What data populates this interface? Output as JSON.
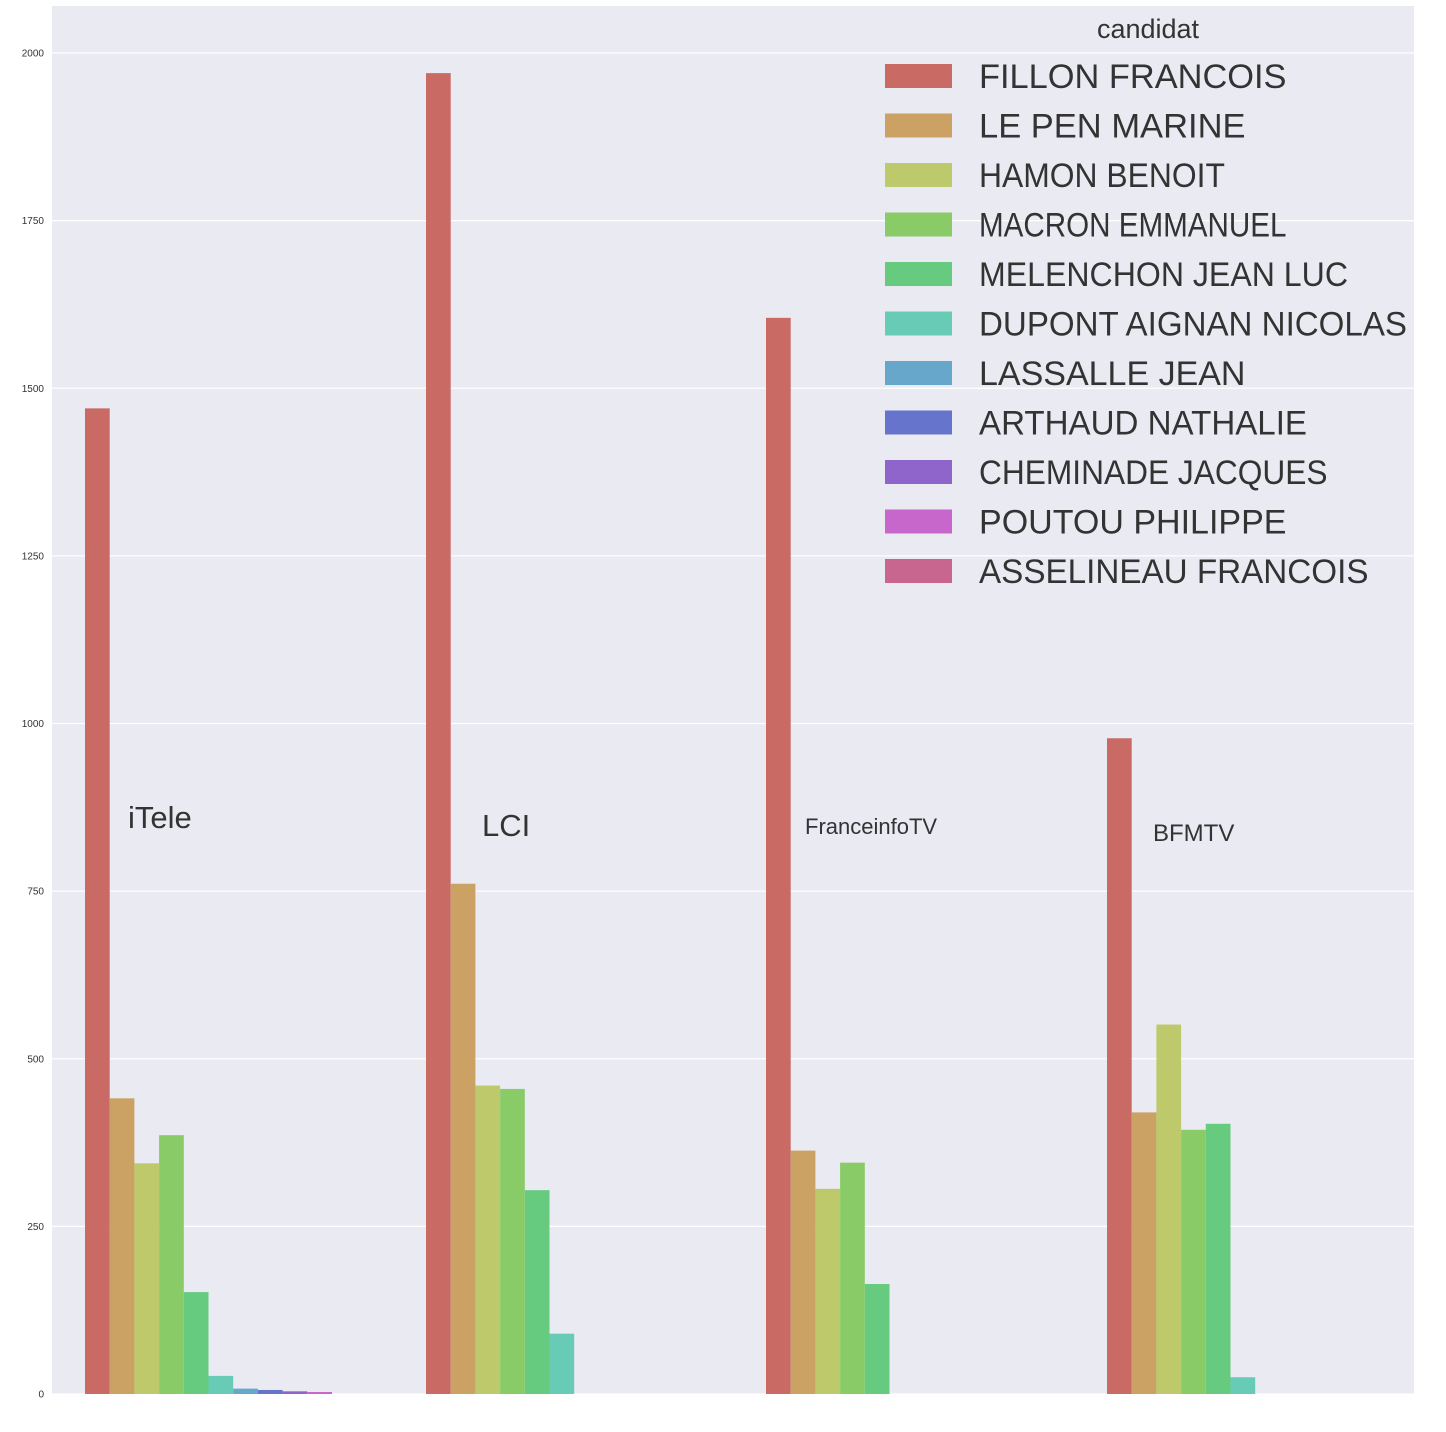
{
  "chart_data": {
    "type": "bar",
    "categories": [
      "iTele",
      "LCI",
      "FranceinfoTV",
      "BFMTV"
    ],
    "ylim": [
      0,
      2060
    ],
    "yticks": [
      0,
      250,
      500,
      750,
      1000,
      1250,
      1500,
      1750,
      2000
    ],
    "grid": true,
    "legend": {
      "title": "candidat",
      "placement": "top-right"
    },
    "series": [
      {
        "name": "FILLON FRANCOIS",
        "color": "#c96b64",
        "values": [
          1470,
          1970,
          1605,
          978
        ]
      },
      {
        "name": "LE PEN MARINE",
        "color": "#cba264",
        "values": [
          441,
          761,
          363,
          420
        ]
      },
      {
        "name": "HAMON BENOIT",
        "color": "#bdc96a",
        "values": [
          344,
          460,
          306,
          551
        ]
      },
      {
        "name": "MACRON EMMANUEL",
        "color": "#89cb67",
        "values": [
          386,
          455,
          345,
          394
        ]
      },
      {
        "name": "MELENCHON JEAN LUC",
        "color": "#66cb7e",
        "values": [
          152,
          304,
          164,
          403
        ]
      },
      {
        "name": "DUPONT AIGNAN NICOLAS",
        "color": "#68cbb5",
        "values": [
          27,
          90,
          0,
          25
        ]
      },
      {
        "name": "LASSALLE JEAN",
        "color": "#67a7cb",
        "values": [
          8,
          0,
          0,
          0
        ]
      },
      {
        "name": "ARTHAUD NATHALIE",
        "color": "#6774cb",
        "values": [
          6,
          0,
          0,
          0
        ]
      },
      {
        "name": "CHEMINADE JACQUES",
        "color": "#9065cb",
        "values": [
          4,
          0,
          0,
          0
        ]
      },
      {
        "name": "POUTOU PHILIPPE",
        "color": "#c767cb",
        "values": [
          3,
          0,
          0,
          0
        ]
      },
      {
        "name": "ASSELINEAU FRANCOIS",
        "color": "#c9668f",
        "values": [
          0,
          0,
          0,
          0
        ]
      }
    ]
  }
}
